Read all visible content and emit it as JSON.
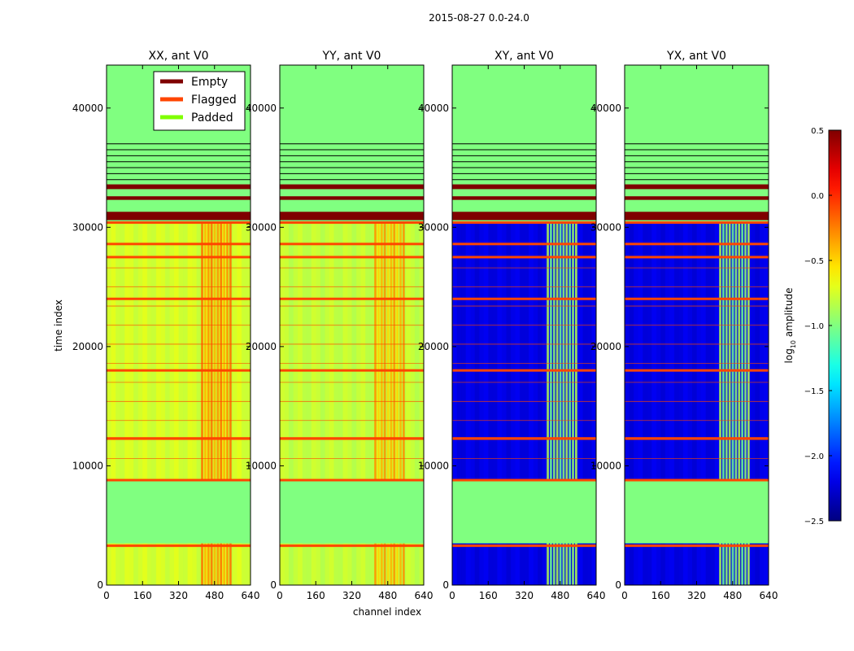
{
  "suptitle": "2015-08-27 0.0-24.0",
  "chart_data": {
    "type": "heatmap",
    "x_label": "channel index",
    "y_label": "time index",
    "x_ticks": [
      0,
      160,
      320,
      480,
      640
    ],
    "y_ticks": [
      0,
      10000,
      20000,
      30000,
      40000
    ],
    "xlim": [
      0,
      640
    ],
    "ylim": [
      0,
      43600
    ],
    "panels": [
      {
        "title": "XX, ant V0",
        "base_level": -0.75,
        "hot_level": -0.35
      },
      {
        "title": "YY, ant V0",
        "base_level": -0.8,
        "hot_level": -0.45
      },
      {
        "title": "XY, ant V0",
        "base_level": -2.2,
        "hot_level": -1.0
      },
      {
        "title": "YX, ant V0",
        "base_level": -2.2,
        "hot_level": -1.0
      }
    ],
    "bright_channel_band": [
      420,
      560
    ],
    "padded_time_ranges": [
      [
        3500,
        8700
      ],
      [
        30500,
        43600
      ]
    ],
    "empty_time_ranges": [
      [
        30600,
        31300
      ],
      [
        32300,
        32600
      ],
      [
        33200,
        33600
      ]
    ],
    "flagged_time_rows": [
      8800,
      27500,
      28600,
      30400,
      3300,
      24000,
      18000,
      12300
    ],
    "legend": [
      {
        "label": "Empty",
        "color": "#7f0000"
      },
      {
        "label": "Flagged",
        "color": "#ff4500"
      },
      {
        "label": "Padded",
        "color": "#7fff00"
      }
    ],
    "colorbar": {
      "label_prefix": "log",
      "label_sub": "10",
      "label_suffix": " amplitude",
      "min": -2.5,
      "max": 0.5,
      "ticks": [
        0.5,
        0.0,
        -0.5,
        -1.0,
        -1.5,
        -2.0,
        -2.5
      ],
      "tick_labels": [
        "0.5",
        "0.0",
        "−0.5",
        "−1.0",
        "−1.5",
        "−2.0",
        "−2.5"
      ]
    }
  }
}
